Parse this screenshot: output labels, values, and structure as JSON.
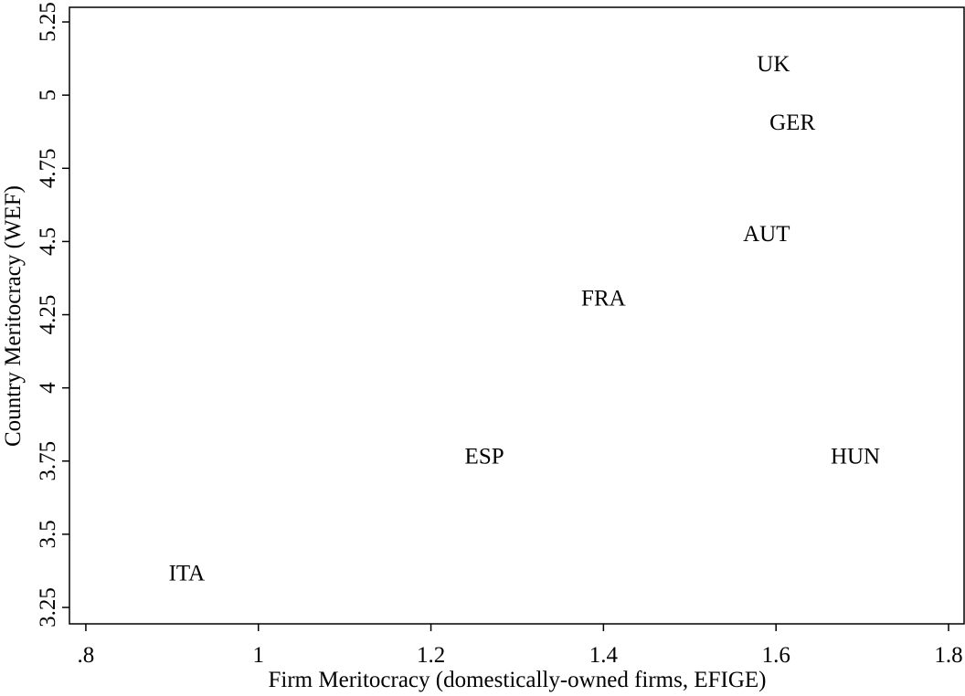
{
  "chart_data": {
    "type": "scatter",
    "xlabel": "Firm Meritocracy (domestically-owned firms, EFIGE)",
    "ylabel": "Country Meritocracy (WEF)",
    "labels": [
      "UK",
      "GER",
      "AUT",
      "FRA",
      "ESP",
      "HUN",
      "ITA"
    ],
    "x": [
      1.597,
      1.619,
      1.589,
      1.4,
      1.262,
      1.692,
      0.917
    ],
    "values": [
      5.11,
      4.91,
      4.53,
      4.31,
      3.77,
      3.77,
      3.37
    ],
    "color": "#000000",
    "xlim": [
      0.781,
      1.818
    ],
    "ylim": [
      3.194,
      5.3
    ],
    "xticks": [
      {
        "value": 0.8,
        "label": ".8"
      },
      1,
      1.2,
      1.4,
      1.6,
      1.8
    ],
    "yticks": [
      3.25,
      3.5,
      3.75,
      4,
      4.25,
      4.5,
      4.75,
      5,
      5.25
    ]
  }
}
